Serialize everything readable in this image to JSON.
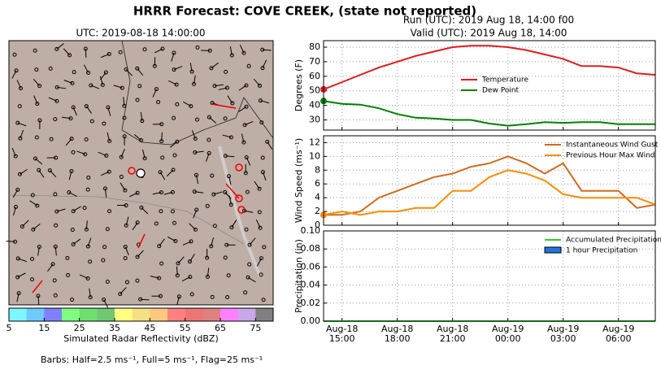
{
  "title": "HRRR Forecast: COVE CREEK, (state not reported)",
  "run": "Run (UTC): 2019 Aug 18, 14:00 f00",
  "valid": "Valid (UTC): 2019 Aug 18, 14:00",
  "footer": "Barbs: Half=2.5 ms⁻¹, Full=5 ms⁻¹, Flag=25 ms⁻¹",
  "chart_data": [
    {
      "type": "colorbar",
      "title": "UTC: 2019-08-18 14:00:00",
      "xlabel": "Simulated Radar Reflectivity (dBZ)",
      "xlim": [
        5,
        80
      ],
      "xticks": [
        5,
        15,
        25,
        35,
        45,
        55,
        65,
        75
      ],
      "colors": [
        "#7ff5ff",
        "#6fcaff",
        "#8080ff",
        "#7fff7f",
        "#6fe06f",
        "#70c870",
        "#ffff80",
        "#f5e082",
        "#ffc880",
        "#ff8080",
        "#ec7676",
        "#e08080",
        "#ff80ff",
        "#c8a8e8",
        "#808080"
      ]
    },
    {
      "type": "line",
      "ylabel": "Degrees (F)",
      "ylim": [
        23,
        84.5
      ],
      "yticks": [
        30,
        40,
        50,
        60,
        70,
        80
      ],
      "grid": true,
      "legend": "center",
      "x": [
        "Aug-18 14:00",
        "Aug-18 15:00",
        "Aug-18 16:00",
        "Aug-18 17:00",
        "Aug-18 18:00",
        "Aug-18 19:00",
        "Aug-18 20:00",
        "Aug-18 21:00",
        "Aug-18 22:00",
        "Aug-18 23:00",
        "Aug-19 00:00",
        "Aug-19 01:00",
        "Aug-19 02:00",
        "Aug-19 03:00",
        "Aug-19 04:00",
        "Aug-19 05:00",
        "Aug-19 06:00",
        "Aug-19 07:00",
        "Aug-19 08:00"
      ],
      "xticks": [
        "Aug-18 15:00",
        "Aug-18 18:00",
        "Aug-18 21:00",
        "Aug-19 00:00",
        "Aug-19 03:00",
        "Aug-19 06:00"
      ],
      "series": [
        {
          "name": "Temperature",
          "color": "#e31a1c",
          "values": [
            51,
            56,
            61,
            66,
            70,
            74,
            77,
            80,
            81,
            81,
            80,
            78,
            75,
            72,
            67,
            67,
            66,
            62,
            61
          ]
        },
        {
          "name": "Dew Point",
          "color": "#008000",
          "values": [
            43,
            41,
            40.5,
            38,
            34,
            31.5,
            31,
            30,
            30,
            27.5,
            26,
            27,
            28.5,
            28,
            28.5,
            28.5,
            27,
            27,
            27
          ]
        }
      ]
    },
    {
      "type": "line",
      "ylabel": "Wind Speed (ms⁻¹)",
      "ylim": [
        0,
        13
      ],
      "yticks": [
        0,
        2,
        4,
        6,
        8,
        10,
        12
      ],
      "grid": true,
      "legend": "upper right",
      "x": [
        "Aug-18 14:00",
        "Aug-18 15:00",
        "Aug-18 16:00",
        "Aug-18 17:00",
        "Aug-18 18:00",
        "Aug-18 19:00",
        "Aug-18 20:00",
        "Aug-18 21:00",
        "Aug-18 22:00",
        "Aug-18 23:00",
        "Aug-19 00:00",
        "Aug-19 01:00",
        "Aug-19 02:00",
        "Aug-19 03:00",
        "Aug-19 04:00",
        "Aug-19 05:00",
        "Aug-19 06:00",
        "Aug-19 07:00",
        "Aug-19 08:00"
      ],
      "xticks": [
        "Aug-18 15:00",
        "Aug-18 18:00",
        "Aug-18 21:00",
        "Aug-19 00:00",
        "Aug-19 03:00",
        "Aug-19 06:00"
      ],
      "series": [
        {
          "name": "Instantaneous Wind Gust",
          "color": "#d2691e",
          "values": [
            1.5,
            1.5,
            2.0,
            4.0,
            5.0,
            6.0,
            7.0,
            7.5,
            8.5,
            9.0,
            10.0,
            9.0,
            7.5,
            9.0,
            5.0,
            5.0,
            5.0,
            2.5,
            3.0
          ]
        },
        {
          "name": "Previous Hour Max Wind",
          "color": "#ff8c00",
          "values": [
            1.5,
            2.0,
            1.5,
            2.0,
            2.0,
            2.5,
            2.5,
            5.0,
            5.0,
            7.0,
            8.0,
            7.5,
            6.5,
            4.5,
            4.0,
            4.0,
            4.0,
            4.0,
            3.0
          ]
        }
      ]
    },
    {
      "type": "line",
      "ylabel": "Precipitation (in)",
      "ylim": [
        0,
        0.1
      ],
      "grid": true,
      "legend": "upper right",
      "yticks": [
        {
          "value": 0,
          "label": "0.00"
        },
        {
          "value": 0.02,
          "label": "0.02"
        },
        {
          "value": 0.04,
          "label": "0.04"
        },
        {
          "value": 0.06,
          "label": "0.06"
        },
        {
          "value": 0.08,
          "label": "0.08"
        },
        {
          "value": 0.1,
          "label": "0.10"
        }
      ],
      "x": [
        "Aug-18 14:00",
        "Aug-18 15:00",
        "Aug-18 16:00",
        "Aug-18 17:00",
        "Aug-18 18:00",
        "Aug-18 19:00",
        "Aug-18 20:00",
        "Aug-18 21:00",
        "Aug-18 22:00",
        "Aug-18 23:00",
        "Aug-19 00:00",
        "Aug-19 01:00",
        "Aug-19 02:00",
        "Aug-19 03:00",
        "Aug-19 04:00",
        "Aug-19 05:00",
        "Aug-19 06:00",
        "Aug-19 07:00",
        "Aug-19 08:00"
      ],
      "xticks": [
        {
          "value": "Aug-18 15:00",
          "label": [
            "Aug-18",
            "15:00"
          ]
        },
        {
          "value": "Aug-18 18:00",
          "label": [
            "Aug-18",
            "18:00"
          ]
        },
        {
          "value": "Aug-18 21:00",
          "label": [
            "Aug-18",
            "21:00"
          ]
        },
        {
          "value": "Aug-19 00:00",
          "label": [
            "Aug-19",
            "00:00"
          ]
        },
        {
          "value": "Aug-19 03:00",
          "label": [
            "Aug-19",
            "03:00"
          ]
        },
        {
          "value": "Aug-19 06:00",
          "label": [
            "Aug-19",
            "06:00"
          ]
        }
      ],
      "series": [
        {
          "name": "Accumulated Precipitation",
          "color": "#33cc33",
          "type": "line",
          "values": [
            0,
            0,
            0,
            0,
            0,
            0,
            0,
            0,
            0,
            0,
            0,
            0,
            0,
            0,
            0,
            0,
            0,
            0,
            0
          ]
        },
        {
          "name": "1 hour Precipitation",
          "color": "#1e78dc",
          "type": "bar",
          "values": [
            0,
            0,
            0,
            0,
            0,
            0,
            0,
            0,
            0,
            0,
            0,
            0,
            0,
            0,
            0,
            0,
            0,
            0,
            0
          ]
        }
      ]
    }
  ]
}
